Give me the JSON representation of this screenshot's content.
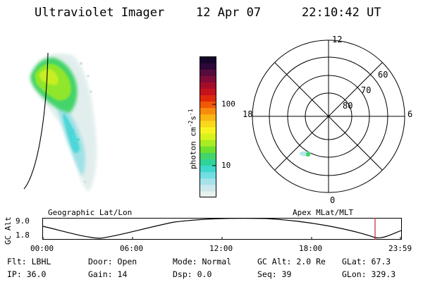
{
  "header": {
    "instrument": "Ultraviolet Imager",
    "date": "12 Apr 07",
    "time": "22:10:42 UT"
  },
  "colorbar": {
    "unit_text": "photon cm",
    "unit_exp1": "-2",
    "unit_mid": "s",
    "unit_exp2": "-1",
    "tick_100": "100",
    "tick_10": "10",
    "colors": [
      "#e8f0f0",
      "#cde8ea",
      "#a5e3e8",
      "#72dde3",
      "#3fd8cf",
      "#2fd39a",
      "#45d46a",
      "#6fde2e",
      "#a8ec22",
      "#d7f21c",
      "#f7f321",
      "#f8d81b",
      "#f9b513",
      "#f78c0c",
      "#f05a06",
      "#de2a0c",
      "#c6121b",
      "#a40d2a",
      "#7d0c38",
      "#560b3f",
      "#2e073a",
      "#160429"
    ]
  },
  "polar": {
    "mlt_top": "12",
    "mlt_left": "18",
    "mlt_right": "6",
    "mlt_bottom": "0",
    "lat_60": "60",
    "lat_70": "70",
    "lat_80": "80"
  },
  "timeline": {
    "left_title": "Geographic Lat/Lon",
    "right_title": "Apex MLat/MLT",
    "yaxis_label": "GC Alt",
    "y_max": "9.0",
    "y_min": "1.8",
    "x_ticks": [
      "00:00",
      "06:00",
      "12:00",
      "18:00",
      "23:59"
    ],
    "marker_color": "#d02020"
  },
  "info": {
    "flt_label": "Flt: LBHL",
    "door_label": "Door: Open",
    "mode_label": "Mode: Normal",
    "gcalt_label": "GC Alt: 2.0 Re",
    "glat_label": "GLat:  67.3",
    "ip_label": "IP: 36.0",
    "gain_label": "Gain: 14",
    "dsp_label": "Dsp:    0.0",
    "seq_label": "Seq: 39",
    "glon_label": "GLon: 329.3"
  }
}
